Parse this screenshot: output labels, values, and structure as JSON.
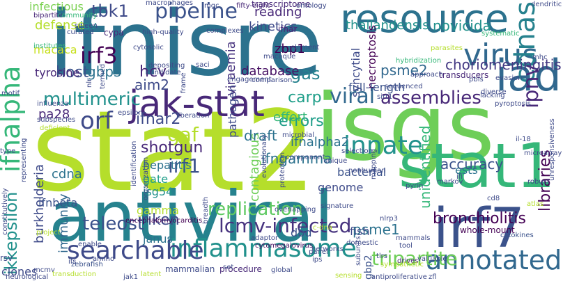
{
  "words": [
    {
      "text": "stat2",
      "color": "#b5de2b"
    },
    {
      "text": "ifnisre",
      "color": "#2c728e"
    },
    {
      "text": "isgs",
      "color": "#6ece58"
    },
    {
      "text": "antiviral",
      "color": "#26828e"
    },
    {
      "text": "irf7",
      "color": "#3b528b"
    },
    {
      "text": "stat1",
      "color": "#35b779"
    },
    {
      "text": "iad",
      "color": "#31688e"
    },
    {
      "text": "jak-stat",
      "color": "#482878"
    },
    {
      "text": "resource",
      "color": "#2c728e"
    },
    {
      "text": "annotated",
      "color": "#31688e"
    },
    {
      "text": "inflammasome",
      "color": "#21918c"
    },
    {
      "text": "searchable",
      "color": "#3e4a89"
    },
    {
      "text": "ifnalpha",
      "color": "#35b779"
    },
    {
      "text": "virus",
      "color": "#31688e"
    },
    {
      "text": "cdnas",
      "color": "#26828e"
    },
    {
      "text": "ipnv",
      "color": "#482878"
    },
    {
      "text": "innate",
      "color": "#21918c"
    },
    {
      "text": "irf3",
      "color": "#440154"
    },
    {
      "text": "pipeline",
      "color": "#3b528b"
    },
    {
      "text": "viral",
      "color": "#31688e"
    },
    {
      "text": "orf",
      "color": "#3e4a89"
    },
    {
      "text": "lcmv-infected",
      "color": "#46327e"
    },
    {
      "text": "tripartite",
      "color": "#6ece58"
    },
    {
      "text": "teleost",
      "color": "#3b528b"
    },
    {
      "text": "ikkepsilon",
      "color": "#21918c"
    },
    {
      "text": "multimeric",
      "color": "#21918c"
    },
    {
      "text": "assemblies",
      "color": "#482878"
    },
    {
      "text": "replication",
      "color": "#5ec962"
    },
    {
      "text": "irf1",
      "color": "#3b528b"
    },
    {
      "text": "tbk1",
      "color": "#3e4a89"
    },
    {
      "text": "carp",
      "color": "#1f9e89"
    },
    {
      "text": "ifnar2",
      "color": "#3e4a89"
    },
    {
      "text": "gaf",
      "color": "#b5de2b"
    },
    {
      "text": "gas",
      "color": "#26828e"
    },
    {
      "text": "errors",
      "color": "#1f9e89"
    },
    {
      "text": "shotgun",
      "color": "#482878"
    },
    {
      "text": "riken",
      "color": "#3e4a89"
    },
    {
      "text": "bronchiolitis",
      "color": "#440154"
    },
    {
      "text": "libraries",
      "color": "#440154"
    },
    {
      "text": "choriomeningitis",
      "color": "#443983"
    },
    {
      "text": "psme2",
      "color": "#31688e"
    },
    {
      "text": "host",
      "color": "#3b528b"
    },
    {
      "text": "hcv",
      "color": "#482878"
    },
    {
      "text": "gbps",
      "color": "#2c728e"
    },
    {
      "text": "aim2",
      "color": "#3e4a89"
    },
    {
      "text": "database",
      "color": "#471164"
    },
    {
      "text": "novicida",
      "color": "#21918c"
    },
    {
      "text": "thailandensis",
      "color": "#21918c"
    },
    {
      "text": "kinetics",
      "color": "#3e4a89"
    },
    {
      "text": "reading",
      "color": "#482878"
    },
    {
      "text": "accuracy",
      "color": "#3b528b"
    },
    {
      "text": "ifngamma",
      "color": "#2c728e"
    },
    {
      "text": "ifnalpha2",
      "color": "#2c728e"
    },
    {
      "text": "contagious",
      "color": "#6ece58"
    },
    {
      "text": "psme1",
      "color": "#2c728e"
    },
    {
      "text": "ests",
      "color": "#2c728e"
    },
    {
      "text": "pa28",
      "color": "#482878"
    },
    {
      "text": "defense",
      "color": "#b5de2b"
    },
    {
      "text": "infectious",
      "color": "#7ad151"
    },
    {
      "text": "macaca",
      "color": "#c8e020"
    },
    {
      "text": "tyrosine",
      "color": "#482878"
    },
    {
      "text": "cdna",
      "color": "#2c728e"
    },
    {
      "text": "hepatitis",
      "color": "#2c728e"
    },
    {
      "text": "gate",
      "color": "#1f9e89"
    },
    {
      "text": "isg54",
      "color": "#21918c"
    },
    {
      "text": "burkholderia",
      "color": "#3e4a89"
    },
    {
      "text": "immunity",
      "color": "#31688e"
    },
    {
      "text": "ifnbeta",
      "color": "#3b528b"
    },
    {
      "text": "effort",
      "color": "#35b779"
    },
    {
      "text": "draft",
      "color": "#2c728e"
    },
    {
      "text": "zbp1",
      "color": "#440154"
    },
    {
      "text": "viraemia",
      "color": "#46327e"
    },
    {
      "text": "pathogen",
      "color": "#3e4a89"
    },
    {
      "text": "syncytial",
      "color": "#3e4a89"
    },
    {
      "text": "necroptosis",
      "color": "#440154"
    },
    {
      "text": "full-length",
      "color": "#3b528b"
    },
    {
      "text": "unidentified",
      "color": "#35b779"
    },
    {
      "text": "fish",
      "color": "#3e4a89"
    },
    {
      "text": "dbd",
      "color": "#3b528b"
    },
    {
      "text": "bacterial",
      "color": "#3b528b"
    },
    {
      "text": "genome",
      "color": "#3e4a89"
    },
    {
      "text": "gamma",
      "color": "#b5de2b"
    },
    {
      "text": "janus",
      "color": "#2c728e"
    },
    {
      "text": "clones",
      "color": "#3e4a89"
    },
    {
      "text": "gbp2",
      "color": "#3b528b"
    },
    {
      "text": "iav",
      "color": "#21918c"
    },
    {
      "text": "ifnar",
      "color": "#482878"
    },
    {
      "text": "transcriptome",
      "color": "#482878"
    },
    {
      "text": "transducers",
      "color": "#482878"
    },
    {
      "text": "encephalomyocarditis",
      "color": "#440154"
    },
    {
      "text": "cytomegalovirus",
      "color": "#471164"
    },
    {
      "text": "whole-mount",
      "color": "#440154"
    },
    {
      "text": "cytokines",
      "color": "#3b528b"
    },
    {
      "text": "rsv",
      "color": "#3e4a89"
    },
    {
      "text": "zebrafish",
      "color": "#3b528b"
    },
    {
      "text": "mammalian",
      "color": "#3e4a89"
    },
    {
      "text": "procedure",
      "color": "#482878"
    },
    {
      "text": "mcmv",
      "color": "#3e4a89"
    },
    {
      "text": "tlrs",
      "color": "#3e4a89"
    },
    {
      "text": "drives",
      "color": "#482878"
    },
    {
      "text": "global",
      "color": "#3e4a89"
    },
    {
      "text": "zfl",
      "color": "#3e4a89"
    },
    {
      "text": "cypa",
      "color": "#482878"
    },
    {
      "text": "motif",
      "color": "#3e4a89"
    },
    {
      "text": "mhc",
      "color": "#3e4a89"
    },
    {
      "text": "pyrin",
      "color": "#3e4a89"
    },
    {
      "text": "markov",
      "color": "#3e4a89"
    },
    {
      "text": "cd8",
      "color": "#3e4a89"
    },
    {
      "text": "nlrp3",
      "color": "#3e4a89"
    },
    {
      "text": "adaptor",
      "color": "#3e4a89"
    },
    {
      "text": "mammals",
      "color": "#3e4a89"
    },
    {
      "text": "tool",
      "color": "#3e4a89"
    },
    {
      "text": "set",
      "color": "#3e4a89"
    },
    {
      "text": "macrophages",
      "color": "#3e4a89"
    },
    {
      "text": "fifty-eight",
      "color": "#482878"
    },
    {
      "text": "ontology",
      "color": "#3e4a89"
    },
    {
      "text": "dendritic",
      "color": "#3e4a89"
    },
    {
      "text": "bipartite",
      "color": "#482878"
    },
    {
      "text": "community",
      "color": "#35b779"
    },
    {
      "text": "spleen",
      "color": "#3e4a89"
    },
    {
      "text": "curated",
      "color": "#3e4a89"
    },
    {
      "text": "high-quality",
      "color": "#3e4a89"
    },
    {
      "text": "complexes",
      "color": "#3e4a89"
    },
    {
      "text": "institutes",
      "color": "#35b779"
    },
    {
      "text": "cytosolic",
      "color": "#3e4a89"
    },
    {
      "text": "depositing",
      "color": "#3e4a89"
    },
    {
      "text": "candidate",
      "color": "#3e4a89"
    },
    {
      "text": "engagement",
      "color": "#3e4a89"
    },
    {
      "text": "comparison",
      "color": "#3e4a89"
    },
    {
      "text": "element",
      "color": "#3e4a89"
    },
    {
      "text": "macaque",
      "color": "#3e4a89"
    },
    {
      "text": "parasites",
      "color": "#b5de2b"
    },
    {
      "text": "hybridization",
      "color": "#35b779"
    },
    {
      "text": "approach",
      "color": "#3e4a89"
    },
    {
      "text": "systematic",
      "color": "#35b779"
    },
    {
      "text": "evasion",
      "color": "#3e4a89"
    },
    {
      "text": "pbls",
      "color": "#3e4a89"
    },
    {
      "text": "sequenced",
      "color": "#3e4a89"
    },
    {
      "text": "lacking",
      "color": "#3e4a89"
    },
    {
      "text": "diverse",
      "color": "#3e4a89"
    },
    {
      "text": "pyroptosis",
      "color": "#3e4a89"
    },
    {
      "text": "unresponsiveness",
      "color": "#3e4a89"
    },
    {
      "text": "il-18",
      "color": "#3e4a89"
    },
    {
      "text": "microarray",
      "color": "#3e4a89"
    },
    {
      "text": "robust",
      "color": "#3e4a89"
    },
    {
      "text": "atlas",
      "color": "#b5de2b"
    },
    {
      "text": "termed",
      "color": "#3e4a89"
    },
    {
      "text": "frame",
      "color": "#3e4a89"
    },
    {
      "text": "influenza",
      "color": "#3e4a89"
    },
    {
      "text": "epsilon",
      "color": "#3e4a89"
    },
    {
      "text": "subspecies",
      "color": "#3e4a89"
    },
    {
      "text": "deficient",
      "color": "#b5de2b"
    },
    {
      "text": "liberation",
      "color": "#3e4a89"
    },
    {
      "text": "microbial",
      "color": "#3e4a89"
    },
    {
      "text": "component",
      "color": "#3e4a89"
    },
    {
      "text": "selection",
      "color": "#3e4a89"
    },
    {
      "text": "unique",
      "color": "#3e4a89"
    },
    {
      "text": "nonhuman",
      "color": "#3e4a89"
    },
    {
      "text": "type",
      "color": "#3e4a89"
    },
    {
      "text": "representing",
      "color": "#3e4a89"
    },
    {
      "text": "identification",
      "color": "#3e4a89"
    },
    {
      "text": "evolutionary",
      "color": "#3e4a89"
    },
    {
      "text": "protection",
      "color": "#3e4a89"
    },
    {
      "text": "organization",
      "color": "#3e4a89"
    },
    {
      "text": "overlapping",
      "color": "#3e4a89"
    },
    {
      "text": "signature",
      "color": "#3e4a89"
    },
    {
      "text": "mapping",
      "color": "#3e4a89"
    },
    {
      "text": "breadth",
      "color": "#3e4a89"
    },
    {
      "text": "project",
      "color": "#b5de2b"
    },
    {
      "text": "enable",
      "color": "#3e4a89"
    },
    {
      "text": "constitutively",
      "color": "#3e4a89"
    },
    {
      "text": "amino",
      "color": "#3e4a89"
    },
    {
      "text": "networks",
      "color": "#3e4a89"
    },
    {
      "text": "domestic",
      "color": "#3e4a89"
    },
    {
      "text": "neurological",
      "color": "#3e4a89"
    },
    {
      "text": "transduction",
      "color": "#b5de2b"
    },
    {
      "text": "jak1",
      "color": "#3e4a89"
    },
    {
      "text": "latent",
      "color": "#b5de2b"
    },
    {
      "text": "sensing",
      "color": "#b5de2b"
    },
    {
      "text": "antiproliferative",
      "color": "#3e4a89"
    },
    {
      "text": "subunits",
      "color": "#3e4a89"
    },
    {
      "text": "sympathetic",
      "color": "#b5de2b"
    },
    {
      "text": "valuable",
      "color": "#3e4a89"
    },
    {
      "text": "mgc",
      "color": "#3e4a89"
    },
    {
      "text": "ifi",
      "color": "#3e4a89"
    },
    {
      "text": "ifs",
      "color": "#3e4a89"
    },
    {
      "text": "panel",
      "color": "#3e4a89"
    },
    {
      "text": "saci",
      "color": "#3e4a89"
    },
    {
      "text": "nlr",
      "color": "#3e4a89"
    },
    {
      "text": "c-dna",
      "color": "#b5de2b"
    },
    {
      "text": "ips",
      "color": "#3e4a89"
    },
    {
      "text": "sirt1",
      "color": "#3e4a89"
    }
  ]
}
